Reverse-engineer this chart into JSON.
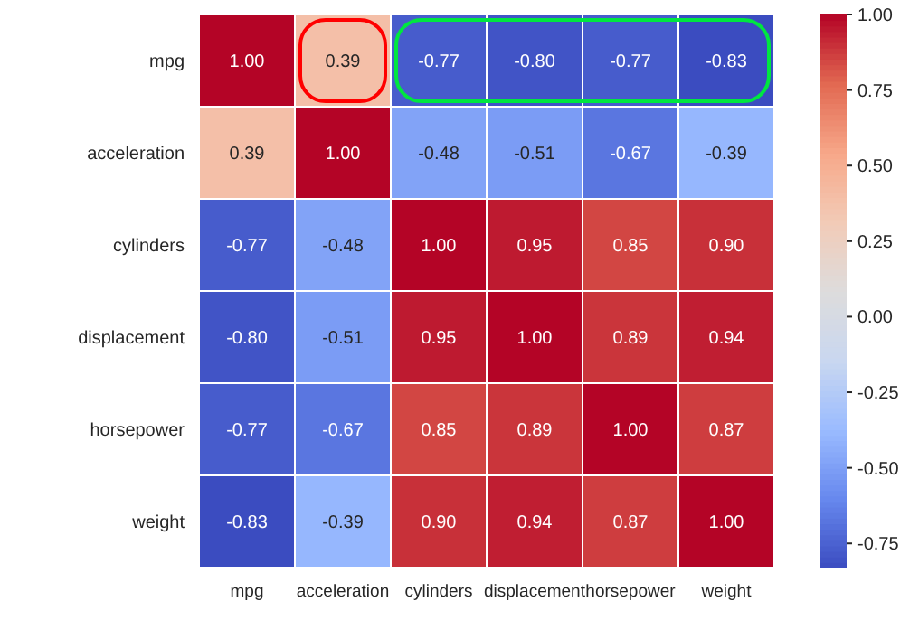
{
  "chart_data": {
    "type": "heatmap",
    "categories": [
      "mpg",
      "acceleration",
      "cylinders",
      "displacement",
      "horsepower",
      "weight"
    ],
    "y_categories": [
      "mpg",
      "acceleration",
      "cylinders",
      "displacement",
      "horsepower",
      "weight"
    ],
    "cells": [
      [
        1.0,
        0.39,
        -0.77,
        -0.8,
        -0.77,
        -0.83
      ],
      [
        0.39,
        1.0,
        -0.48,
        -0.51,
        -0.67,
        -0.39
      ],
      [
        -0.77,
        -0.48,
        1.0,
        0.95,
        0.85,
        0.9
      ],
      [
        -0.8,
        -0.51,
        0.95,
        1.0,
        0.89,
        0.94
      ],
      [
        -0.77,
        -0.67,
        0.85,
        0.89,
        1.0,
        0.87
      ],
      [
        -0.83,
        -0.39,
        0.9,
        0.94,
        0.87,
        1.0
      ]
    ],
    "cell_labels": [
      [
        "1.00",
        "0.39",
        "-0.77",
        "-0.80",
        "-0.77",
        "-0.83"
      ],
      [
        "0.39",
        "1.00",
        "-0.48",
        "-0.51",
        "-0.67",
        "-0.39"
      ],
      [
        "-0.77",
        "-0.48",
        "1.00",
        "0.95",
        "0.85",
        "0.90"
      ],
      [
        "-0.80",
        "-0.51",
        "0.95",
        "1.00",
        "0.89",
        "0.94"
      ],
      [
        "-0.77",
        "-0.67",
        "0.85",
        "0.89",
        "1.00",
        "0.87"
      ],
      [
        "-0.83",
        "-0.39",
        "0.90",
        "0.94",
        "0.87",
        "1.00"
      ]
    ],
    "clim": [
      -0.83,
      1.0
    ],
    "cticks": [
      {
        "value": 1.0,
        "label": "1.00"
      },
      {
        "value": 0.75,
        "label": "0.75"
      },
      {
        "value": 0.5,
        "label": "0.50"
      },
      {
        "value": 0.25,
        "label": "0.25"
      },
      {
        "value": 0.0,
        "label": "0.00"
      },
      {
        "value": -0.25,
        "label": "-0.25"
      },
      {
        "value": -0.5,
        "label": "-0.50"
      },
      {
        "value": -0.75,
        "label": "-0.75"
      }
    ]
  }
}
